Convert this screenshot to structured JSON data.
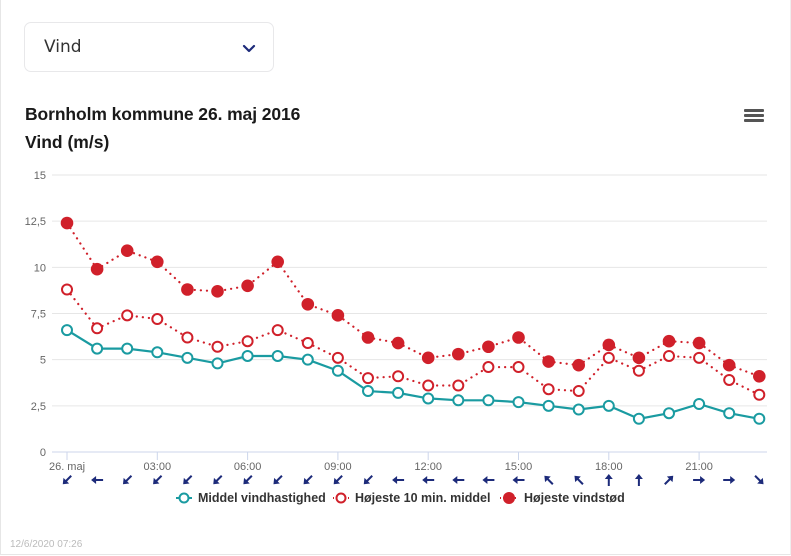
{
  "selector": {
    "value": "Vind",
    "icon": "chevron-down-icon"
  },
  "menu_icon": "hamburger-menu-icon",
  "timestamp": "12/6/2020 07:26",
  "colors": {
    "mean": "#1a9ba1",
    "max10": "#d0202a",
    "gust": "#d0202a",
    "arrows": "#1d2b7a",
    "grid": "#e6e6e6",
    "axis_text": "#666666"
  },
  "chart_data": {
    "type": "line",
    "title": "Bornholm kommune 26. maj 2016",
    "subtitle": "Vind (m/s)",
    "xlabel": "",
    "ylabel": "",
    "ylim": [
      0,
      15
    ],
    "yticks": [
      0,
      2.5,
      5,
      7.5,
      10,
      12.5,
      15
    ],
    "ytick_labels": [
      "0",
      "2,5",
      "5",
      "7,5",
      "10",
      "12,5",
      "15"
    ],
    "grid": true,
    "x_hours": [
      0,
      1,
      2,
      3,
      4,
      5,
      6,
      7,
      8,
      9,
      10,
      11,
      12,
      13,
      14,
      15,
      16,
      17,
      18,
      19,
      20,
      21,
      22,
      23
    ],
    "xticks": [
      {
        "hour": 0,
        "label": "26. maj"
      },
      {
        "hour": 3,
        "label": "03:00"
      },
      {
        "hour": 6,
        "label": "06:00"
      },
      {
        "hour": 9,
        "label": "09:00"
      },
      {
        "hour": 12,
        "label": "12:00"
      },
      {
        "hour": 15,
        "label": "15:00"
      },
      {
        "hour": 18,
        "label": "18:00"
      },
      {
        "hour": 21,
        "label": "21:00"
      }
    ],
    "series": [
      {
        "name": "Middel vindhastighed",
        "style": "solid-line-open-marker",
        "color": "#1a9ba1",
        "values": [
          6.6,
          5.6,
          5.6,
          5.4,
          5.1,
          4.8,
          5.2,
          5.2,
          5.0,
          4.4,
          3.3,
          3.2,
          2.9,
          2.8,
          2.8,
          2.7,
          2.5,
          2.3,
          2.5,
          1.8,
          2.1,
          2.6,
          2.1,
          1.8
        ]
      },
      {
        "name": "Højeste 10 min. middel",
        "style": "dotted-line-open-marker",
        "color": "#d0202a",
        "values": [
          8.8,
          6.7,
          7.4,
          7.2,
          6.2,
          5.7,
          6.0,
          6.6,
          5.9,
          5.1,
          4.0,
          4.1,
          3.6,
          3.6,
          4.6,
          4.6,
          3.4,
          3.3,
          5.1,
          4.4,
          5.2,
          5.1,
          3.9,
          3.1
        ]
      },
      {
        "name": "Højeste vindstød",
        "style": "dotted-line-filled-marker",
        "color": "#d0202a",
        "values": [
          12.4,
          9.9,
          10.9,
          10.3,
          8.8,
          8.7,
          9.0,
          10.3,
          8.0,
          7.4,
          6.2,
          5.9,
          5.1,
          5.3,
          5.7,
          6.2,
          4.9,
          4.7,
          5.8,
          5.1,
          6.0,
          5.9,
          4.7,
          4.1
        ]
      }
    ],
    "wind_direction_arrows": [
      "SW",
      "W",
      "SW",
      "SW",
      "SW",
      "SW",
      "SW",
      "SW",
      "SW",
      "SW",
      "SW",
      "W",
      "W",
      "W",
      "W",
      "W",
      "NW",
      "NW",
      "N",
      "N",
      "NE",
      "E",
      "E",
      "SE"
    ],
    "legend": {
      "position": "bottom",
      "entries": [
        "Middel vindhastighed",
        "Højeste 10 min. middel",
        "Højeste vindstød"
      ]
    }
  }
}
